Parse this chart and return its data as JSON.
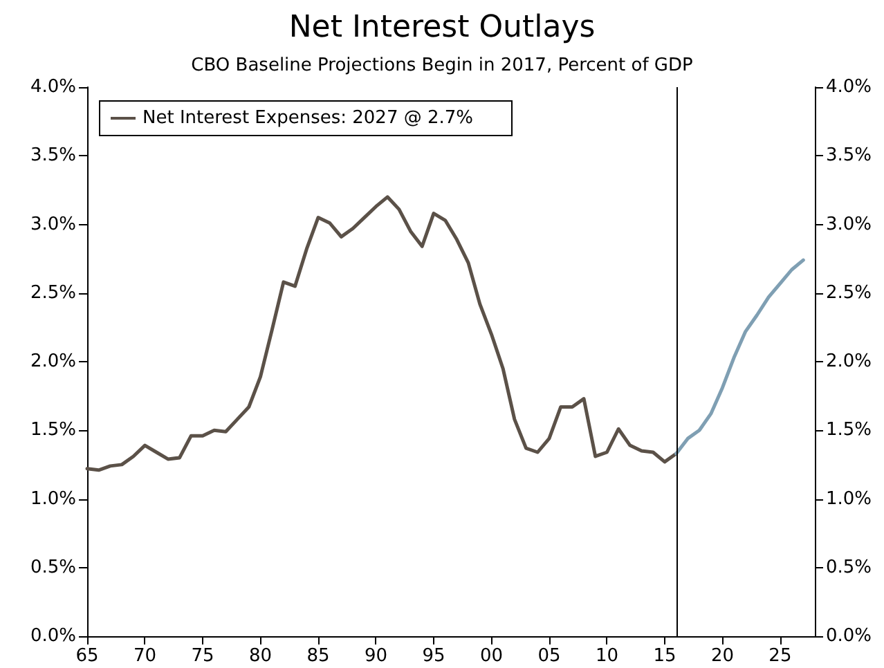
{
  "chart_data": {
    "type": "line",
    "title": "Net Interest Outlays",
    "subtitle": "CBO Baseline Projections Begin in 2017, Percent of GDP",
    "series": [
      {
        "name": "Net Interest Expenses: 2027 @ 2.7%",
        "color": "#5b5148",
        "x": [
          1965,
          1966,
          1967,
          1968,
          1969,
          1970,
          1971,
          1972,
          1973,
          1974,
          1975,
          1976,
          1977,
          1978,
          1979,
          1980,
          1981,
          1982,
          1983,
          1984,
          1985,
          1986,
          1987,
          1988,
          1989,
          1990,
          1991,
          1992,
          1993,
          1994,
          1995,
          1996,
          1997,
          1998,
          1999,
          2000,
          2001,
          2002,
          2003,
          2004,
          2005,
          2006,
          2007,
          2008,
          2009,
          2010,
          2011,
          2012,
          2013,
          2014,
          2015,
          2016
        ],
        "values": [
          1.22,
          1.21,
          1.24,
          1.25,
          1.31,
          1.39,
          1.34,
          1.29,
          1.3,
          1.46,
          1.46,
          1.5,
          1.49,
          1.58,
          1.67,
          1.89,
          2.23,
          2.58,
          2.55,
          2.82,
          3.05,
          3.01,
          2.91,
          2.97,
          3.05,
          3.13,
          3.2,
          3.11,
          2.95,
          2.84,
          3.08,
          3.03,
          2.89,
          2.72,
          2.42,
          2.2,
          1.95,
          1.58,
          1.37,
          1.34,
          1.44,
          1.67,
          1.67,
          1.73,
          1.31,
          1.34,
          1.51,
          1.39,
          1.35,
          1.34,
          1.27,
          1.33
        ]
      },
      {
        "color": "#7f9fb3",
        "x": [
          2016,
          2017,
          2018,
          2019,
          2020,
          2021,
          2022,
          2023,
          2024,
          2025,
          2026,
          2027
        ],
        "values": [
          1.33,
          1.44,
          1.5,
          1.62,
          1.81,
          2.03,
          2.22,
          2.34,
          2.47,
          2.57,
          2.67,
          2.74
        ]
      }
    ],
    "xlim": [
      1965,
      2028
    ],
    "xticks": [
      {
        "value": 1965,
        "label": "65"
      },
      {
        "value": 1970,
        "label": "70"
      },
      {
        "value": 1975,
        "label": "75"
      },
      {
        "value": 1980,
        "label": "80"
      },
      {
        "value": 1985,
        "label": "85"
      },
      {
        "value": 1990,
        "label": "90"
      },
      {
        "value": 1995,
        "label": "95"
      },
      {
        "value": 2000,
        "label": "00"
      },
      {
        "value": 2005,
        "label": "05"
      },
      {
        "value": 2010,
        "label": "10"
      },
      {
        "value": 2015,
        "label": "15"
      },
      {
        "value": 2020,
        "label": "20"
      },
      {
        "value": 2025,
        "label": "25"
      }
    ],
    "ylim": [
      0,
      4
    ],
    "yticks": [
      {
        "value": 0,
        "label": "0.0%"
      },
      {
        "value": 0.5,
        "label": "0.5%"
      },
      {
        "value": 1,
        "label": "1.0%"
      },
      {
        "value": 1.5,
        "label": "1.5%"
      },
      {
        "value": 2,
        "label": "2.0%"
      },
      {
        "value": 2.5,
        "label": "2.5%"
      },
      {
        "value": 3,
        "label": "3.0%"
      },
      {
        "value": 3.5,
        "label": "3.5%"
      },
      {
        "value": 4,
        "label": "4.0%"
      }
    ],
    "y2lim": [
      0,
      4
    ],
    "y2ticks": [
      {
        "value": 0,
        "label": "0.0%"
      },
      {
        "value": 0.5,
        "label": "0.5%"
      },
      {
        "value": 1,
        "label": "1.0%"
      },
      {
        "value": 1.5,
        "label": "1.5%"
      },
      {
        "value": 2,
        "label": "2.0%"
      },
      {
        "value": 2.5,
        "label": "2.5%"
      },
      {
        "value": 3,
        "label": "3.0%"
      },
      {
        "value": 3.5,
        "label": "3.5%"
      },
      {
        "value": 4,
        "label": "4.0%"
      }
    ],
    "ref_lines": [
      {
        "axis": "x",
        "value": 2016,
        "color": "#000000"
      }
    ],
    "legend": "top left",
    "grid": false,
    "marker": "none",
    "line_style": "solid"
  }
}
